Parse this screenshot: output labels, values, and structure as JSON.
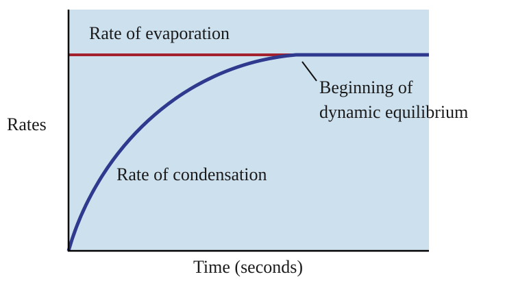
{
  "labels": {
    "evaporation": "Rate of evaporation",
    "equilibrium_line1": "Beginning of",
    "equilibrium_line2": "dynamic equilibrium",
    "condensation": "Rate of condensation",
    "y_axis": "Rates",
    "x_axis": "Time (seconds)"
  }
}
